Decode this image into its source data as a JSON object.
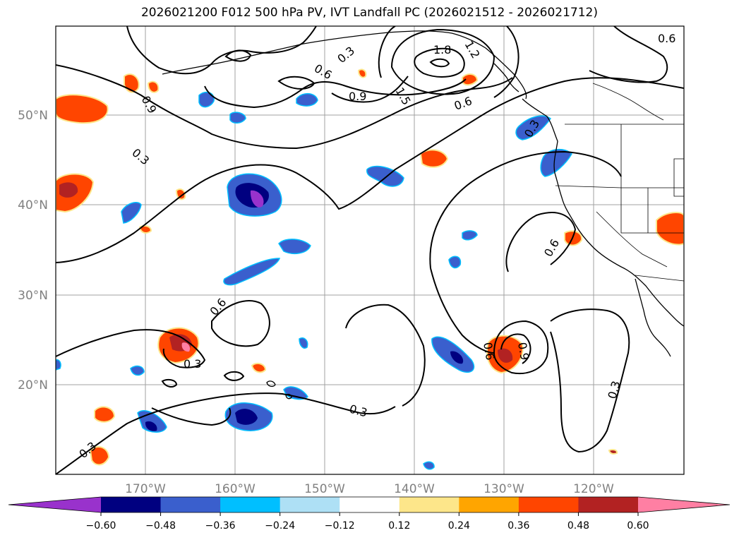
{
  "title": "2026021200 F012 500 hPa PV, IVT Landfall PC (2026021512 - 2026021712)",
  "lat_labels": [
    "50°N",
    "40°N",
    "30°N",
    "20°N"
  ],
  "lon_labels": [
    "170°W",
    "160°W",
    "150°W",
    "140°W",
    "130°W",
    "120°W"
  ],
  "contour_labels": [
    "0.3",
    "0.6",
    "0.9",
    "1.2",
    "1.5",
    "1.8",
    "0.6",
    "0.9",
    "0.3",
    "0.6",
    "0.3",
    "0.6",
    "0.9",
    "0.3",
    "0.3",
    "0.3",
    "0.6",
    "0.3",
    "0.6"
  ],
  "colorbar": {
    "ticks": [
      "−0.60",
      "−0.48",
      "−0.36",
      "−0.24",
      "−0.12",
      "0.12",
      "0.24",
      "0.36",
      "0.48",
      "0.60"
    ],
    "colors": [
      "#9932cc",
      "#000080",
      "#3a5fcd",
      "#00bfff",
      "#aee0f5",
      "#ffffff",
      "#fde68a",
      "#ffa500",
      "#ff4500",
      "#b22222",
      "#ff7fa3"
    ]
  }
}
